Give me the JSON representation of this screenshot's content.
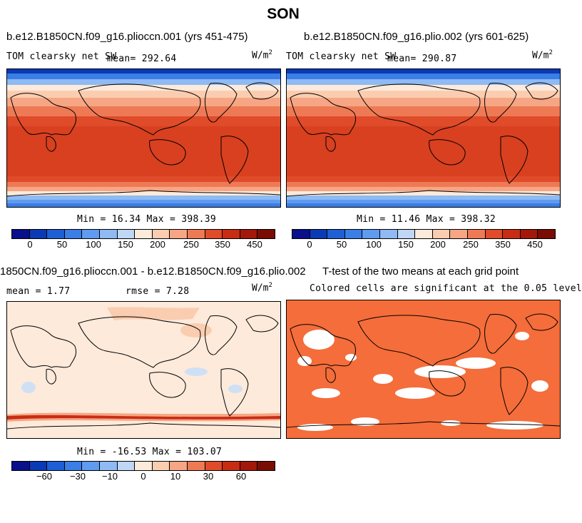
{
  "title": "SON",
  "panels": [
    {
      "title": "b.e12.B1850CN.f09_g16.plioccn.001 (yrs 451-475)",
      "var": "TOM clearsky net SW",
      "mean": "mean= 292.64",
      "units": "W/m",
      "units_exp": "2",
      "minmax": "Min =  16.34 Max = 398.39"
    },
    {
      "title": "b.e12.B1850CN.f09_g16.plio.002 (yrs 601-625)",
      "var": "TOM clearsky net SW",
      "mean": "mean= 290.87",
      "units": "W/m",
      "units_exp": "2",
      "minmax": "Min =  11.46 Max = 398.32"
    },
    {
      "title": "1850CN.f09_g16.plioccn.001 - b.e12.B1850CN.f09_g16.plio.002",
      "mean": "mean =    1.77",
      "rmse": "rmse =    7.28",
      "units": "W/m",
      "units_exp": "2",
      "minmax": "Min = -16.53 Max = 103.07"
    },
    {
      "title": "T-test of the two means at each grid point",
      "subtitle": "Colored cells are significant at the 0.05 level"
    }
  ],
  "colorbars": {
    "absolute": {
      "colors": [
        "#08108c",
        "#0a3ab5",
        "#1f5fd6",
        "#3a7ee6",
        "#5f9bf0",
        "#8fbaf3",
        "#bfd6f5",
        "#fdeadb",
        "#fbcdb0",
        "#f6a684",
        "#ee7a55",
        "#e04b2a",
        "#c82d14",
        "#a3180a",
        "#7a0c04"
      ],
      "ticks": [
        "0",
        "50",
        "100",
        "150",
        "200",
        "250",
        "350",
        "450"
      ]
    },
    "difference": {
      "colors": [
        "#08108c",
        "#0a3ab5",
        "#1f5fd6",
        "#3a7ee6",
        "#5f9bf0",
        "#8fbaf3",
        "#bfd6f5",
        "#fdeadb",
        "#fbcdb0",
        "#f6a684",
        "#ee7a55",
        "#e04b2a",
        "#c82d14",
        "#a3180a",
        "#7a0c04"
      ],
      "ticks": [
        "−60",
        "−30",
        "−10",
        "0",
        "10",
        "30",
        "60"
      ]
    }
  },
  "chart_data": [
    {
      "type": "heatmap",
      "title": "b.e12.B1850CN.f09_g16.plioccn.001 (yrs 451-475)",
      "variable": "TOM clearsky net SW",
      "units": "W/m2",
      "mean": 292.64,
      "min": 16.34,
      "max": 398.39,
      "colorbar_range": [
        0,
        450
      ],
      "colorbar_ticks": [
        0,
        50,
        100,
        150,
        200,
        250,
        350,
        450
      ]
    },
    {
      "type": "heatmap",
      "title": "b.e12.B1850CN.f09_g16.plio.002 (yrs 601-625)",
      "variable": "TOM clearsky net SW",
      "units": "W/m2",
      "mean": 290.87,
      "min": 11.46,
      "max": 398.32,
      "colorbar_range": [
        0,
        450
      ],
      "colorbar_ticks": [
        0,
        50,
        100,
        150,
        200,
        250,
        350,
        450
      ]
    },
    {
      "type": "heatmap",
      "title": "1850CN.f09_g16.plioccn.001 - b.e12.B1850CN.f09_g16.plio.002",
      "units": "W/m2",
      "mean": 1.77,
      "rmse": 7.28,
      "min": -16.53,
      "max": 103.07,
      "colorbar_ticks": [
        -60,
        -30,
        -10,
        0,
        10,
        30,
        60
      ]
    },
    {
      "type": "heatmap",
      "title": "T-test of the two means at each grid point",
      "note": "Colored cells are significant at the 0.05 level",
      "significance_level": 0.05
    }
  ]
}
